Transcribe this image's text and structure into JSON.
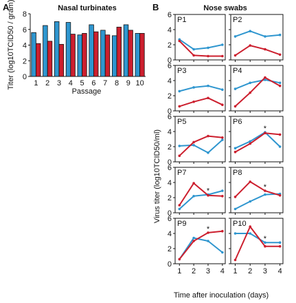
{
  "chart_data": [
    {
      "type": "bar",
      "letter": "A",
      "title": "Nasal turbinates",
      "ylabel": "Titer (log10TCID50 / gram)",
      "xlabel": "Passage",
      "categories": [
        "1",
        "2",
        "3",
        "4",
        "5",
        "6",
        "7",
        "8",
        "9",
        "10"
      ],
      "ylim": [
        0,
        8
      ],
      "yticks": [
        0,
        2,
        4,
        6,
        8
      ],
      "series": [
        {
          "color": "#2f96cf",
          "values": [
            5.6,
            6.5,
            7.0,
            6.9,
            5.3,
            6.6,
            5.9,
            5.2,
            6.6,
            5.5
          ]
        },
        {
          "color": "#cc1f2e",
          "values": [
            4.2,
            4.5,
            4.1,
            5.4,
            5.5,
            5.7,
            5.3,
            6.3,
            5.9,
            5.5
          ]
        }
      ]
    },
    {
      "type": "line",
      "letter": "B",
      "title": "Nose swabs",
      "ylabel": "Virus titer (log10TCID50/ml)",
      "xlabel": "Time after inoculation (days)",
      "x": [
        1,
        2,
        3,
        4
      ],
      "ylim": [
        0,
        6
      ],
      "yticks": [
        0,
        2,
        4,
        6
      ],
      "colors": {
        "blue": "#2f96cf",
        "red": "#cc1f2e"
      },
      "panels": [
        {
          "label": "P1",
          "blue": [
            2.7,
            1.4,
            1.6,
            2.0
          ],
          "red": [
            2.5,
            0.6,
            0.5,
            0.5
          ],
          "star_day": null
        },
        {
          "label": "P2",
          "blue": [
            3.1,
            3.8,
            3.1,
            3.3
          ],
          "red": [
            0.6,
            1.9,
            1.4,
            0.7
          ],
          "star_day": null
        },
        {
          "label": "P3",
          "blue": [
            2.6,
            3.1,
            3.3,
            2.8
          ],
          "red": [
            0.6,
            1.2,
            1.7,
            0.8
          ],
          "star_day": null
        },
        {
          "label": "P4",
          "blue": [
            2.9,
            3.7,
            4.1,
            3.7
          ],
          "red": [
            0.6,
            2.4,
            4.4,
            3.3
          ],
          "star_day": null
        },
        {
          "label": "P5",
          "blue": [
            2.1,
            2.2,
            1.2,
            2.9
          ],
          "red": [
            0.8,
            2.6,
            3.4,
            3.2
          ],
          "star_day": null
        },
        {
          "label": "P6",
          "blue": [
            1.8,
            2.7,
            3.9,
            2.0
          ],
          "red": [
            1.3,
            2.4,
            3.8,
            3.6
          ],
          "star_day": 3
        },
        {
          "label": "P7",
          "blue": [
            0.5,
            2.2,
            2.4,
            2.9
          ],
          "red": [
            1.0,
            3.9,
            2.3,
            2.2
          ],
          "star_day": 3
        },
        {
          "label": "P8",
          "blue": [
            0.5,
            1.5,
            2.4,
            2.5
          ],
          "red": [
            2.1,
            4.1,
            2.9,
            2.3
          ],
          "star_day": 3
        },
        {
          "label": "P9",
          "blue": [
            0.6,
            3.4,
            3.0,
            1.5
          ],
          "red": [
            0.6,
            3.0,
            4.1,
            4.3
          ],
          "star_day": 3
        },
        {
          "label": "P10",
          "blue": [
            4.0,
            4.0,
            2.8,
            2.8
          ],
          "red": [
            0.5,
            4.9,
            2.3,
            2.3
          ],
          "star_day": 3
        }
      ]
    }
  ]
}
